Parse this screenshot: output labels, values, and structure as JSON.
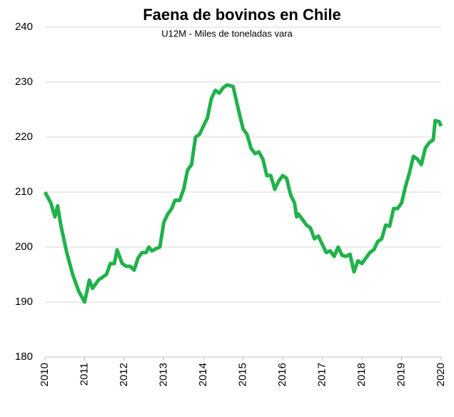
{
  "chart_data": {
    "type": "line",
    "title": "Faena de bovinos en Chile",
    "subtitle": "U12M - Miles de toneladas vara",
    "x": [
      2010.0,
      2010.15,
      2010.25,
      2010.32,
      2010.4,
      2010.55,
      2010.7,
      2010.85,
      2011.0,
      2011.12,
      2011.2,
      2011.35,
      2011.55,
      2011.65,
      2011.75,
      2011.82,
      2011.95,
      2012.05,
      2012.15,
      2012.25,
      2012.35,
      2012.45,
      2012.55,
      2012.62,
      2012.7,
      2012.8,
      2012.9,
      2013.0,
      2013.1,
      2013.2,
      2013.28,
      2013.4,
      2013.5,
      2013.6,
      2013.7,
      2013.8,
      2013.9,
      2014.0,
      2014.1,
      2014.2,
      2014.3,
      2014.4,
      2014.5,
      2014.6,
      2014.75,
      2014.85,
      2015.0,
      2015.1,
      2015.2,
      2015.3,
      2015.4,
      2015.5,
      2015.6,
      2015.7,
      2015.8,
      2015.9,
      2016.0,
      2016.1,
      2016.2,
      2016.3,
      2016.35,
      2016.4,
      2016.5,
      2016.6,
      2016.7,
      2016.8,
      2016.9,
      2017.0,
      2017.1,
      2017.2,
      2017.3,
      2017.4,
      2017.5,
      2017.6,
      2017.7,
      2017.8,
      2017.9,
      2018.0,
      2018.1,
      2018.2,
      2018.3,
      2018.4,
      2018.5,
      2018.6,
      2018.7,
      2018.8,
      2018.9,
      2019.0,
      2019.1,
      2019.2,
      2019.3,
      2019.4,
      2019.5,
      2019.6,
      2019.7,
      2019.8,
      2019.85,
      2019.95,
      2020.0
    ],
    "series": [
      {
        "name": "Faena",
        "color": "#21b24b",
        "values": [
          210,
          208,
          205.5,
          207.5,
          204,
          199,
          195,
          192,
          190,
          194,
          192.5,
          194,
          195,
          197,
          197,
          199.5,
          197,
          196.5,
          196.5,
          195.8,
          198,
          199,
          199,
          200,
          199.3,
          199.7,
          200,
          204.5,
          206,
          207,
          208.5,
          208.5,
          210.5,
          214,
          215,
          220,
          220.5,
          222,
          223.5,
          227,
          228.5,
          228,
          229,
          229.5,
          229.2,
          226,
          221.5,
          220.5,
          218,
          217,
          217.3,
          216,
          213,
          213,
          210.5,
          212,
          213,
          212.5,
          209.5,
          208,
          205.5,
          206,
          205,
          204,
          203.5,
          201.5,
          202,
          200.5,
          199,
          199.3,
          198.3,
          200,
          198.5,
          198.3,
          198.7,
          195.5,
          197.5,
          197,
          198,
          199,
          199.5,
          201,
          201.5,
          204,
          203.8,
          207,
          207,
          208,
          211,
          213.5,
          216.5,
          216,
          215,
          218,
          219,
          219.5,
          223,
          222.8,
          222
        ]
      }
    ],
    "xlim": [
      2010,
      2020
    ],
    "xticks": [
      2010,
      2011,
      2012,
      2013,
      2014,
      2015,
      2016,
      2017,
      2018,
      2019,
      2020
    ],
    "ylim": [
      180,
      240
    ],
    "yticks": [
      180,
      190,
      200,
      210,
      220,
      230,
      240
    ],
    "grid": true
  }
}
